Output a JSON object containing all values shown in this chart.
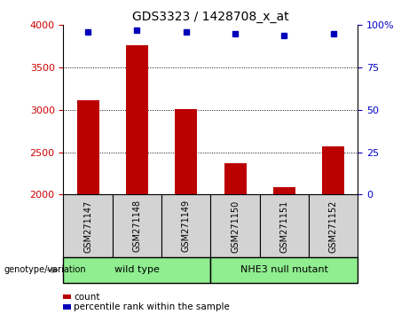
{
  "title": "GDS3323 / 1428708_x_at",
  "samples": [
    "GSM271147",
    "GSM271148",
    "GSM271149",
    "GSM271150",
    "GSM271151",
    "GSM271152"
  ],
  "counts": [
    3110,
    3760,
    3010,
    2370,
    2090,
    2570
  ],
  "percentile_ranks": [
    96,
    97,
    96,
    95,
    94,
    95
  ],
  "ymin": 2000,
  "ymax": 4000,
  "yticks": [
    2000,
    2500,
    3000,
    3500,
    4000
  ],
  "y2min": 0,
  "y2max": 100,
  "y2ticks": [
    0,
    25,
    50,
    75,
    100
  ],
  "y2tick_labels": [
    "0",
    "25",
    "50",
    "75",
    "100%"
  ],
  "bar_color": "#bb0000",
  "dot_color": "#0000bb",
  "group_boxes": [
    {
      "label": "wild type",
      "start": 0,
      "end": 2,
      "color": "#90ee90"
    },
    {
      "label": "NHE3 null mutant",
      "start": 3,
      "end": 5,
      "color": "#90ee90"
    }
  ],
  "group_label": "genotype/variation",
  "legend_items": [
    {
      "label": "count",
      "color": "#bb0000"
    },
    {
      "label": "percentile rank within the sample",
      "color": "#0000bb"
    }
  ],
  "tick_color_left": "#cc0000",
  "tick_color_right": "#0000cc",
  "background_color": "#ffffff",
  "sample_box_color": "#d3d3d3",
  "grid_lines": [
    2500,
    3000,
    3500
  ]
}
